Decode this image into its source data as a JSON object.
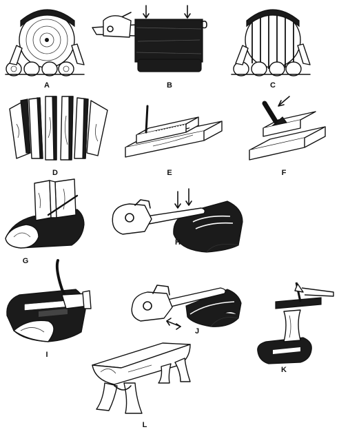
{
  "figure": {
    "panels": [
      {
        "id": "A",
        "label": "A"
      },
      {
        "id": "B",
        "label": "B"
      },
      {
        "id": "C",
        "label": "C"
      },
      {
        "id": "D",
        "label": "D"
      },
      {
        "id": "E",
        "label": "E"
      },
      {
        "id": "F",
        "label": "F"
      },
      {
        "id": "G",
        "label": "G"
      },
      {
        "id": "H",
        "label": "H"
      },
      {
        "id": "I",
        "label": "I"
      },
      {
        "id": "J",
        "label": "J"
      },
      {
        "id": "K",
        "label": "K"
      },
      {
        "id": "L",
        "label": "L"
      }
    ]
  }
}
